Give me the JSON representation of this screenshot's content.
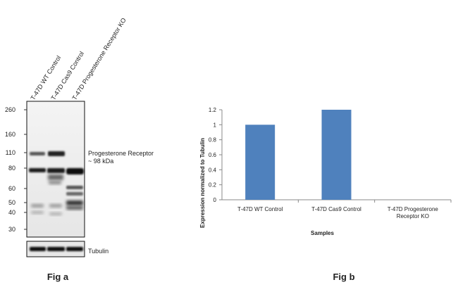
{
  "fig_a": {
    "caption": "Fig a",
    "lanes": [
      "T-47D WT Control",
      "T-47D Cas9 Control",
      "T-47D Progesterone Receptor KO"
    ],
    "markers": [
      "260",
      "160",
      "110",
      "80",
      "60",
      "50",
      "40",
      "30"
    ],
    "band_label_line1": "Progesterone Receptor",
    "band_label_line2": "~ 98 kDa",
    "loading_control": "Tubulin"
  },
  "fig_b": {
    "caption": "Fig b"
  },
  "chart_data": {
    "type": "bar",
    "categories": [
      "T-47D WT Control",
      "T-47D Cas9 Control",
      "T-47D Progesterone Receptor KO"
    ],
    "category_lines": [
      [
        "T-47D WT Control"
      ],
      [
        "T-47D Cas9 Control"
      ],
      [
        "T-47D Progesterone",
        "Receptor KO"
      ]
    ],
    "values": [
      1.0,
      1.2,
      0
    ],
    "xlabel": "Samples",
    "ylabel": "Expression normalized to Tubulin",
    "ylim": [
      0,
      1.2
    ],
    "yticks": [
      "0",
      "0.2",
      "0.4",
      "0.6",
      "0.8",
      "1",
      "1.2"
    ],
    "bar_color": "#4f81bd",
    "grid": false
  }
}
